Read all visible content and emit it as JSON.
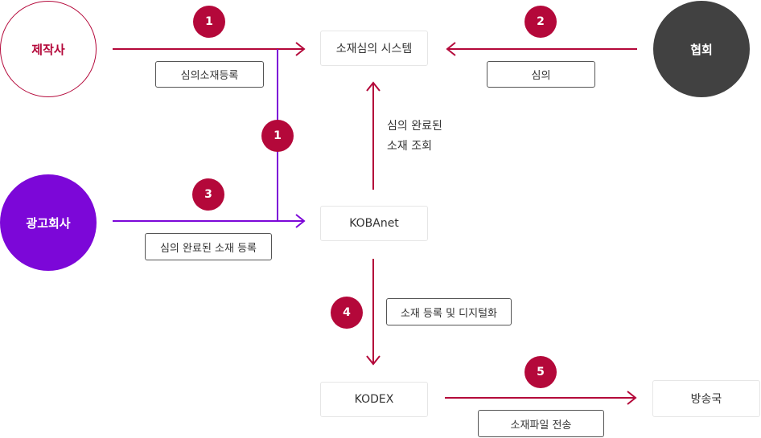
{
  "nodes": {
    "producer": "제작사",
    "agency": "광고회사",
    "association": "협회",
    "system": "소재심의 시스템",
    "kobanet": "KOBAnet",
    "kodex": "KODEX",
    "broadcaster": "방송국"
  },
  "labels": {
    "register_material": "심의소재등록",
    "review": "심의",
    "register_reviewed": "심의 완료된 소재 등록",
    "register_digitize": "소재 등록 및 디지털화",
    "send_file": "소재파일 전송",
    "query_line1": "심의 완료된",
    "query_line2": "소재 조회"
  },
  "steps": {
    "step_1a": "1",
    "step_2": "2",
    "step_1b": "1",
    "step_3": "3",
    "step_4": "4",
    "step_5": "5"
  },
  "colors": {
    "red": "#b4083a",
    "purple": "#7c07d8",
    "dark": "#414141"
  }
}
